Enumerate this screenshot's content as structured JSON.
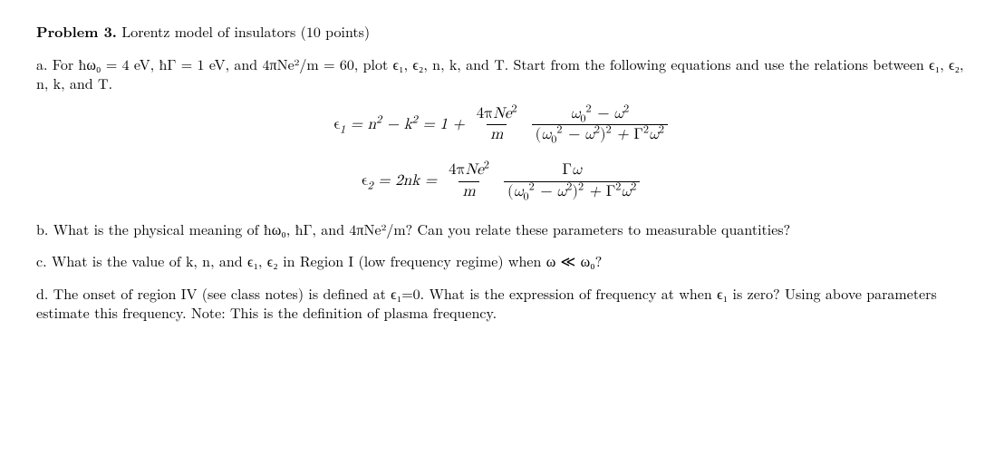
{
  "title_prefix": "Problem 3.",
  "title_rest": " Lorentz model of insulators (10 points)",
  "parts": {
    "a": "a.   For  ħω₀ = 4 eV,  ħΓ = 1 eV, and 4πNe²/m = 60, plot ϵ₁, ϵ₂, n, k, and T.  Start from the following equations and use the relations between ϵ₁, ϵ₂, n, k, and T.",
    "b": "b.  What is the physical meaning of ħω₀, ħΓ, and 4πNe²/m? Can you relate these parameters to measurable quantities?",
    "c": "c. What is the value of k, n, and ϵ₁, ϵ₂ in Region I (low frequency regime) when ω ≪ ω₀?",
    "d": "d.  The onset of region IV (see class notes) is defined at ϵ₁=0. What is the expression of frequency at when ϵ₁ is zero? Using above parameters estimate this frequency. Note: This is the definition of plasma frequency."
  },
  "eq1": {
    "lhs": "ϵ₁ = n² − k² = 1 +",
    "fracA_num": "4πNe²",
    "fracA_den": "m",
    "fracB_num": "ω₀² − ω²",
    "fracB_den": "(ω₀² − ω²)² + Γ²ω²"
  },
  "eq2": {
    "lhs": "ϵ₂ = 2nk =",
    "fracA_num": "4πNe²",
    "fracA_den": "m",
    "fracB_num": "Γω",
    "fracB_den": "(ω₀² − ω²)² + Γ²ω²"
  }
}
